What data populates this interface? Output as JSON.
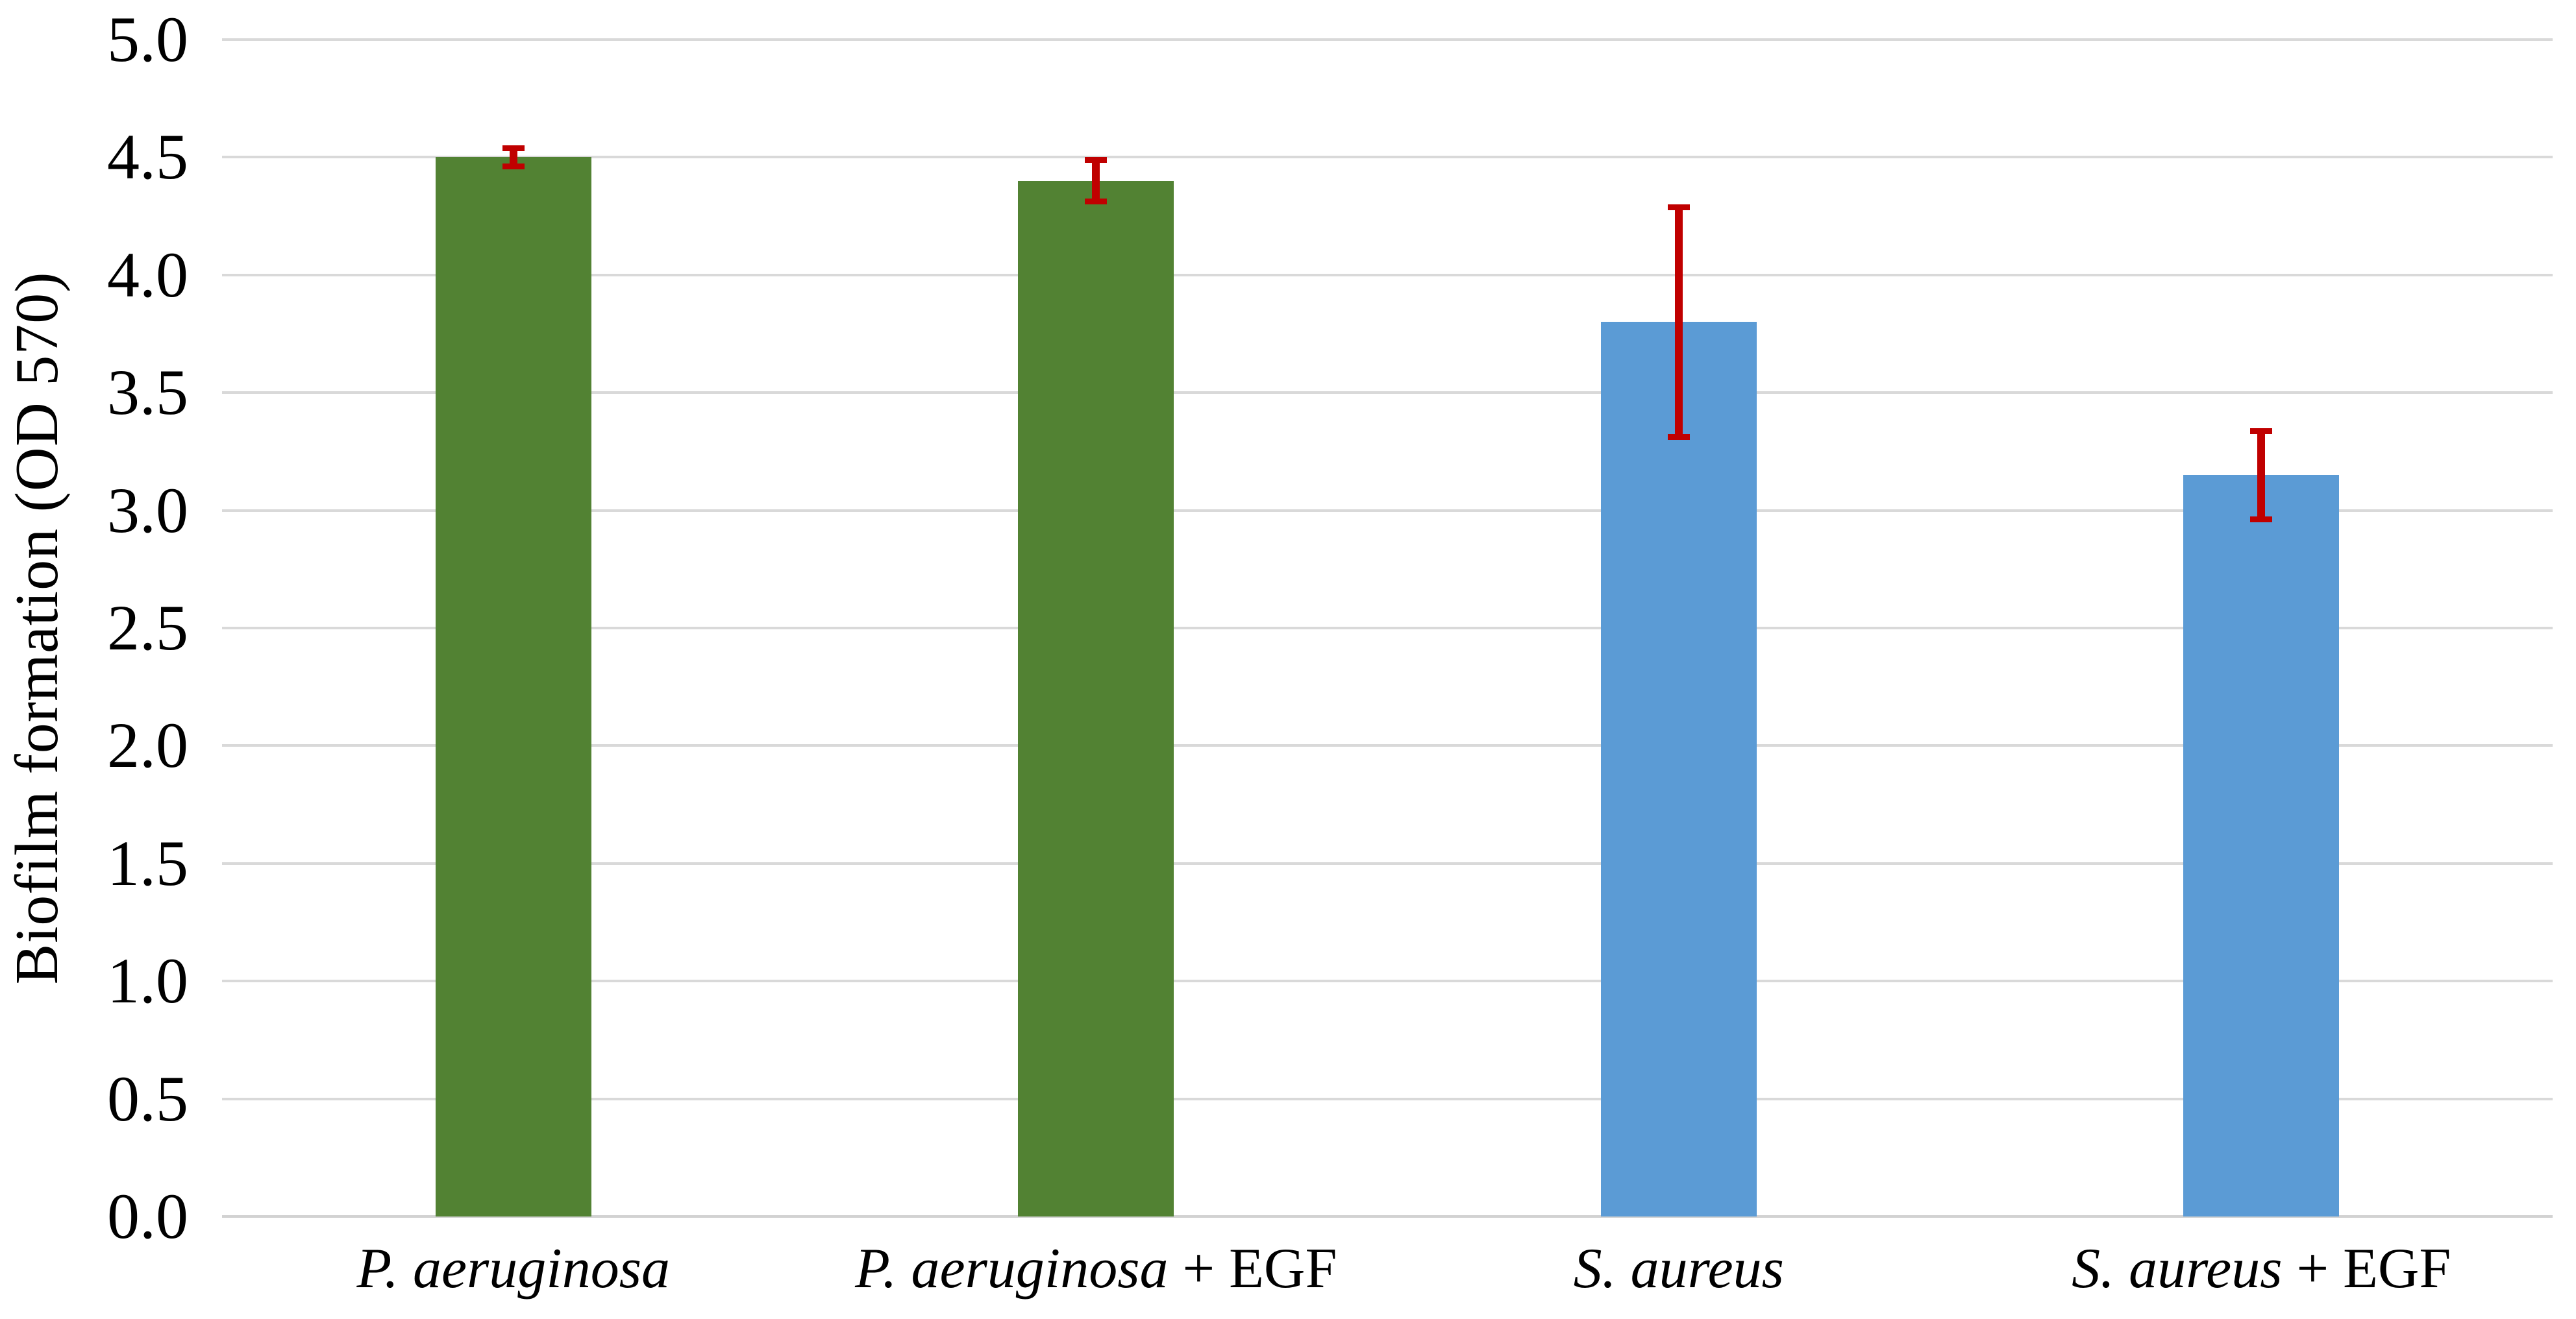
{
  "chart_data": {
    "type": "bar",
    "title": "",
    "xlabel": "",
    "ylabel": "Biofilm formation (OD 570)",
    "ylim": [
      0,
      5
    ],
    "ytick_step": 0.5,
    "yticks": [
      "0.0",
      "0.5",
      "1.0",
      "1.5",
      "2.0",
      "2.5",
      "3.0",
      "3.5",
      "4.0",
      "4.5",
      "5.0"
    ],
    "grid": true,
    "legend": "none",
    "categories": [
      {
        "species": "P. aeruginosa",
        "suffix": ""
      },
      {
        "species": "P. aeruginosa",
        "suffix": " + EGF"
      },
      {
        "species": "S. aureus",
        "suffix": ""
      },
      {
        "species": "S. aureus",
        "suffix": " + EGF"
      }
    ],
    "series": [
      {
        "name": "Biofilm formation (OD 570)",
        "values": [
          4.5,
          4.4,
          3.8,
          3.15
        ],
        "error_low": [
          4.45,
          4.3,
          3.3,
          2.95
        ],
        "error_high": [
          4.55,
          4.5,
          4.3,
          3.35
        ],
        "bar_colors": [
          "#528233",
          "#528233",
          "#5b9bd5",
          "#5b9bd5"
        ]
      }
    ],
    "colors": {
      "green_bar": "#528233",
      "blue_bar": "#5b9bd5",
      "error_bar": "#c00000",
      "gridline": "#d9d9d9",
      "axis_line": "#d2d2d2",
      "text": "#000000",
      "background": "#ffffff"
    }
  }
}
